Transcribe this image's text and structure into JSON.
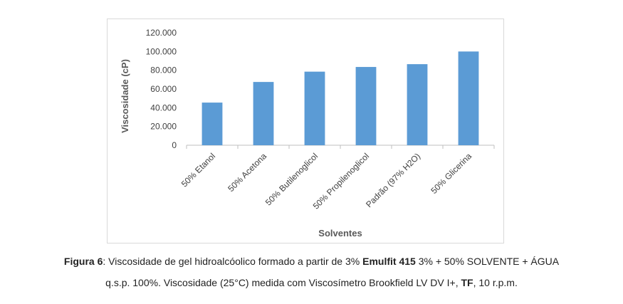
{
  "chart_data": {
    "type": "bar",
    "categories": [
      "50% Etanol",
      "50% Acetona",
      "50% Butilenoglicol",
      "50% Propilenoglicol",
      "Padrão (97% H2O)",
      "50% Glicerina"
    ],
    "values": [
      45500,
      67500,
      78500,
      83500,
      86500,
      100000
    ],
    "xlabel": "Solventes",
    "ylabel": "Viscosidade (cP)",
    "ylim": [
      0,
      120000
    ],
    "yticks": [
      0,
      20000,
      40000,
      60000,
      80000,
      100000,
      120000
    ],
    "ytick_labels": [
      "0",
      "20.000",
      "40.000",
      "60.000",
      "80.000",
      "100.000",
      "120.000"
    ],
    "bar_color": "#5b9bd5",
    "grid": false,
    "legend": "none"
  },
  "caption": {
    "fig_label": "Figura 6",
    "colon": ":",
    "text_1": " Viscosidade de gel hidroalcóolico formado a partir de 3% ",
    "brand": "Emulfit 415",
    "text_2": " 3% + 50% SOLVENTE + ÁGUA",
    "line_2a": "q.s.p. 100%. Viscosidade (25°C) medida com Viscosímetro Brookfield LV DV I+, ",
    "tf": "TF",
    "line_2b": ", 10 r.p.m."
  }
}
